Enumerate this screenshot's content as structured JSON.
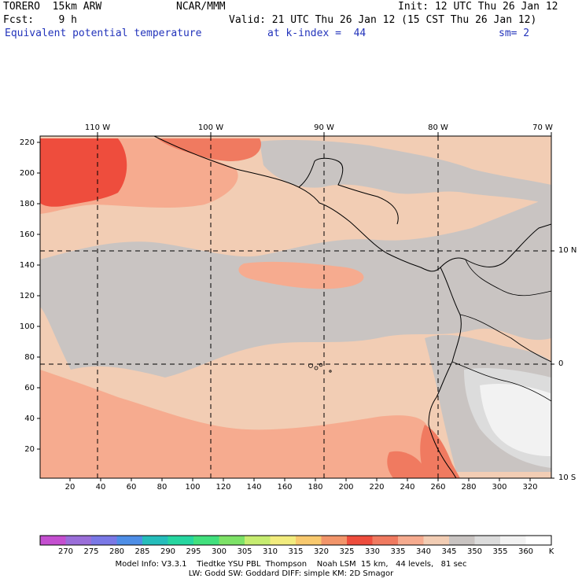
{
  "header": {
    "model_name": "TORERO  15km ARW",
    "center": "NCAR/MMM",
    "init": "Init: 12 UTC Thu 26 Jan 12",
    "fcst": "Fcst:    9 h",
    "valid": "Valid: 21 UTC Thu 26 Jan 12 (15 CST Thu 26 Jan 12)",
    "field": "Equivalent potential temperature",
    "level": "at k-index =  44",
    "smoothing": "sm= 2"
  },
  "map": {
    "lon_labels": [
      "110 W",
      "100 W",
      "90 W",
      "80 W",
      "70 W"
    ],
    "lat_labels": [
      "10 N",
      "0",
      "10 S"
    ],
    "y_ticks": [
      "220",
      "200",
      "180",
      "160",
      "140",
      "120",
      "100",
      "80",
      "60",
      "40",
      "20"
    ],
    "x_ticks": [
      "20",
      "40",
      "60",
      "80",
      "100",
      "120",
      "140",
      "160",
      "180",
      "200",
      "220",
      "240",
      "260",
      "280",
      "300",
      "320"
    ],
    "colors": {
      "ocean_main": "#f2cdb4",
      "warm1": "#f6ab8f",
      "warm2": "#f07a60",
      "warm3": "#ee4d3d",
      "cool1": "#c9c4c2",
      "cool2": "#dcdcdc",
      "cool3": "#f2f2f2",
      "boundary": "#000000"
    }
  },
  "colorbar": {
    "unit": "K",
    "labels": [
      "270",
      "275",
      "280",
      "285",
      "290",
      "295",
      "300",
      "305",
      "310",
      "315",
      "320",
      "325",
      "330",
      "335",
      "340",
      "345",
      "350",
      "355",
      "360"
    ],
    "colors": [
      "#c44fd0",
      "#9a6ed9",
      "#7a78e6",
      "#4e8ee6",
      "#25bdbb",
      "#26d6a0",
      "#41e07d",
      "#7de267",
      "#c6ec70",
      "#f2ec7e",
      "#f8c96e",
      "#f2956a",
      "#ee4d3d",
      "#f07a60",
      "#f6ab8f",
      "#f2cdb4",
      "#c9c4c2",
      "#dcdcdc",
      "#f2f2f2",
      "#ffffff"
    ]
  },
  "footer": {
    "line1": "Model Info: V3.3.1    Tiedtke YSU PBL  Thompson    Noah LSM  15 km,   44 levels,   81 sec",
    "line2": "LW: Godd SW: Goddard DIFF: simple KM: 2D Smagor"
  }
}
